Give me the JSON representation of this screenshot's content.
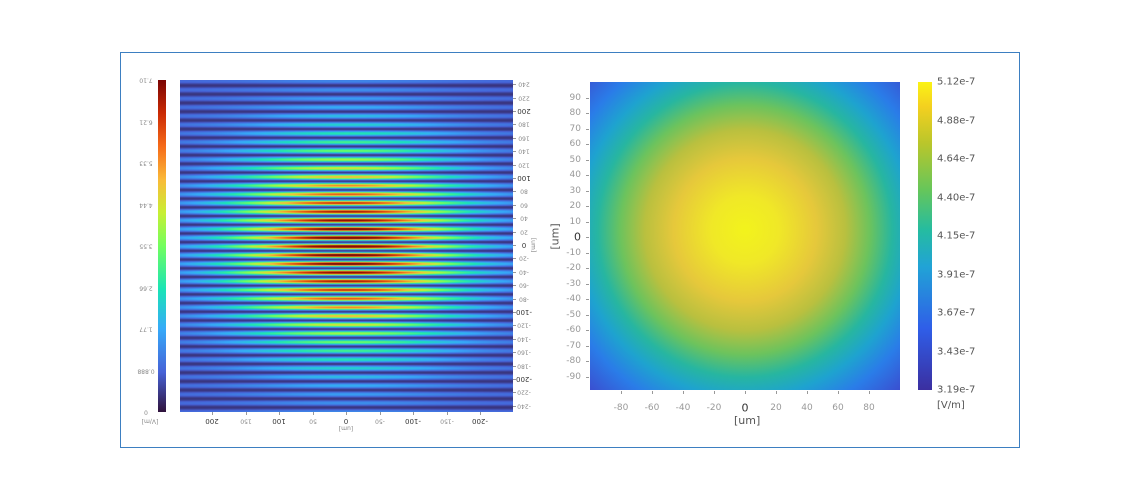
{
  "left_plot": {
    "orientation": "rotated 180 degrees",
    "colormap": "turbo",
    "colorbar_ticks": [
      "7.10",
      "6.21",
      "5.33",
      "4.44",
      "3.55",
      "2.66",
      "1.77",
      "0.888",
      "0"
    ],
    "colorbar_unit": "[V/m]",
    "x_ticks": [
      "200",
      "150",
      "100",
      "50",
      "0",
      "-50",
      "-100",
      "-150",
      "-200"
    ],
    "x_label": "[um]",
    "y_ticks": [
      "240",
      "220",
      "200",
      "180",
      "160",
      "140",
      "120",
      "100",
      "80",
      "60",
      "40",
      "20",
      "0",
      "-20",
      "-40",
      "-60",
      "-80",
      "-100",
      "-120",
      "-140",
      "-160",
      "-180",
      "-200",
      "-220",
      "-240"
    ],
    "y_label": "[um]"
  },
  "chart_data": [
    {
      "type": "heatmap",
      "xlim": [
        250,
        -250
      ],
      "ylim": [
        -250,
        250
      ],
      "zlim": [
        0,
        7.1
      ],
      "colormap": "turbo",
      "colorbar_unit": "[V/m]",
      "xlabel": "[um]",
      "ylabel": "[um]"
    },
    {
      "type": "heatmap",
      "xlim": [
        -100,
        100
      ],
      "ylim": [
        -100,
        100
      ],
      "zlim": [
        3.19e-07,
        5.12e-07
      ],
      "colormap": "viridis-like",
      "xlabel": "[um]",
      "ylabel": "[um]",
      "colorbar_unit": "[V/m]"
    }
  ],
  "right_plot": {
    "x_ticks": [
      "-80",
      "-60",
      "-40",
      "-20",
      "0",
      "20",
      "40",
      "60",
      "80"
    ],
    "x_label": "[um]",
    "y_ticks": [
      "90",
      "80",
      "70",
      "60",
      "50",
      "40",
      "30",
      "20",
      "10",
      "0",
      "-10",
      "-20",
      "-30",
      "-40",
      "-50",
      "-60",
      "-70",
      "-80",
      "-90"
    ],
    "y_label": "[um]",
    "colorbar_ticks": [
      "5.12e-7",
      "4.88e-7",
      "4.64e-7",
      "4.40e-7",
      "4.15e-7",
      "3.91e-7",
      "3.67e-7",
      "3.43e-7",
      "3.19e-7"
    ],
    "colorbar_unit": "[V/m]"
  },
  "colors": {
    "frame": "#3d7fc1"
  }
}
